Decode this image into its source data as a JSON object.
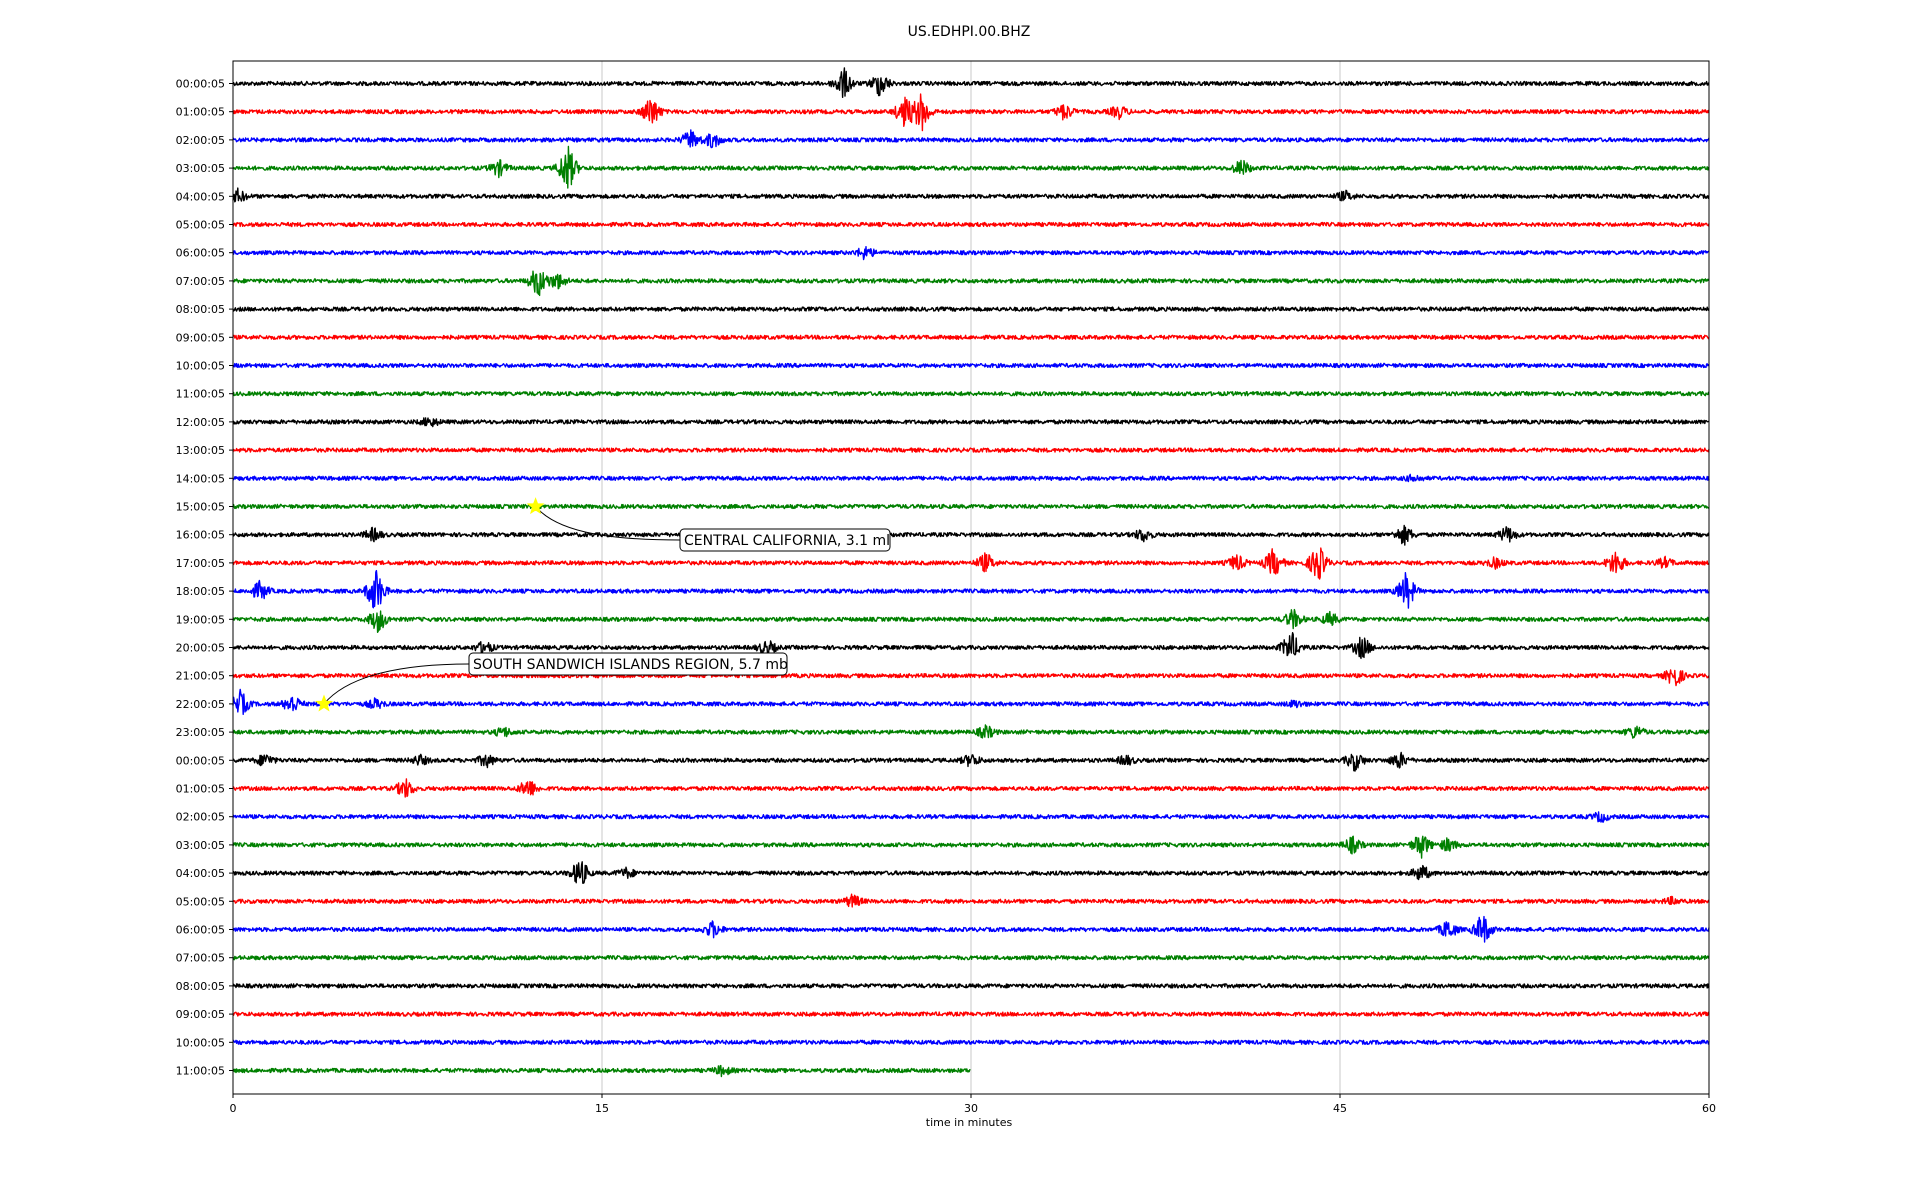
{
  "chart_data": {
    "type": "line",
    "title": "US.EDHPI.00.BHZ",
    "xlabel": "time in minutes",
    "ylabel": "",
    "xlim": [
      0,
      60
    ],
    "x_ticks": [
      "0",
      "15",
      "30",
      "45",
      "60"
    ],
    "x_tick_values": [
      0,
      15,
      30,
      45,
      60
    ],
    "grid": "vertical",
    "row_labels": [
      "00:00:05",
      "01:00:05",
      "02:00:05",
      "03:00:05",
      "04:00:05",
      "05:00:05",
      "06:00:05",
      "07:00:05",
      "08:00:05",
      "09:00:05",
      "10:00:05",
      "11:00:05",
      "12:00:05",
      "13:00:05",
      "14:00:05",
      "15:00:05",
      "16:00:05",
      "17:00:05",
      "18:00:05",
      "19:00:05",
      "20:00:05",
      "21:00:05",
      "22:00:05",
      "23:00:05",
      "00:00:05",
      "01:00:05",
      "02:00:05",
      "03:00:05",
      "04:00:05",
      "05:00:05",
      "06:00:05",
      "07:00:05",
      "08:00:05",
      "09:00:05",
      "10:00:05",
      "11:00:05"
    ],
    "trace_colors": [
      "#000000",
      "#ff0000",
      "#0000ff",
      "#008000"
    ],
    "last_trace_end_minute": 30,
    "events": [
      {
        "row": 0,
        "x": 24.8,
        "amp": 1.0
      },
      {
        "row": 0,
        "x": 26.3,
        "amp": 0.8
      },
      {
        "row": 1,
        "x": 17.0,
        "amp": 1.0
      },
      {
        "row": 1,
        "x": 27.3,
        "amp": 1.0
      },
      {
        "row": 1,
        "x": 28.0,
        "amp": 1.2
      },
      {
        "row": 1,
        "x": 33.8,
        "amp": 0.5
      },
      {
        "row": 1,
        "x": 36.0,
        "amp": 0.4
      },
      {
        "row": 2,
        "x": 18.6,
        "amp": 0.6
      },
      {
        "row": 2,
        "x": 19.5,
        "amp": 0.5
      },
      {
        "row": 3,
        "x": 10.8,
        "amp": 0.5
      },
      {
        "row": 3,
        "x": 13.6,
        "amp": 1.5
      },
      {
        "row": 3,
        "x": 41.0,
        "amp": 0.5
      },
      {
        "row": 4,
        "x": 0.2,
        "amp": 0.4
      },
      {
        "row": 4,
        "x": 45.2,
        "amp": 0.3
      },
      {
        "row": 6,
        "x": 25.7,
        "amp": 0.4
      },
      {
        "row": 7,
        "x": 12.4,
        "amp": 1.0
      },
      {
        "row": 7,
        "x": 13.2,
        "amp": 0.5
      },
      {
        "row": 12,
        "x": 8.0,
        "amp": 0.3
      },
      {
        "row": 14,
        "x": 48.0,
        "amp": 0.2
      },
      {
        "row": 16,
        "x": 5.7,
        "amp": 0.4
      },
      {
        "row": 16,
        "x": 37.0,
        "amp": 0.4
      },
      {
        "row": 16,
        "x": 47.6,
        "amp": 0.6
      },
      {
        "row": 16,
        "x": 51.8,
        "amp": 0.5
      },
      {
        "row": 17,
        "x": 30.6,
        "amp": 0.6
      },
      {
        "row": 17,
        "x": 40.8,
        "amp": 0.5
      },
      {
        "row": 17,
        "x": 42.3,
        "amp": 0.9
      },
      {
        "row": 17,
        "x": 44.1,
        "amp": 1.2
      },
      {
        "row": 17,
        "x": 51.3,
        "amp": 0.3
      },
      {
        "row": 17,
        "x": 56.2,
        "amp": 0.8
      },
      {
        "row": 17,
        "x": 58.2,
        "amp": 0.3
      },
      {
        "row": 18,
        "x": 1.1,
        "amp": 0.6
      },
      {
        "row": 18,
        "x": 5.8,
        "amp": 1.5
      },
      {
        "row": 18,
        "x": 47.7,
        "amp": 1.2
      },
      {
        "row": 19,
        "x": 5.9,
        "amp": 0.8
      },
      {
        "row": 19,
        "x": 43.1,
        "amp": 0.6
      },
      {
        "row": 19,
        "x": 44.6,
        "amp": 0.4
      },
      {
        "row": 20,
        "x": 10.2,
        "amp": 0.4
      },
      {
        "row": 20,
        "x": 21.7,
        "amp": 0.5
      },
      {
        "row": 20,
        "x": 43.0,
        "amp": 1.0
      },
      {
        "row": 20,
        "x": 45.9,
        "amp": 0.7
      },
      {
        "row": 21,
        "x": 58.6,
        "amp": 0.7
      },
      {
        "row": 22,
        "x": 0.3,
        "amp": 0.8
      },
      {
        "row": 22,
        "x": 2.4,
        "amp": 0.6
      },
      {
        "row": 22,
        "x": 5.8,
        "amp": 0.3
      },
      {
        "row": 22,
        "x": 43.2,
        "amp": 0.2
      },
      {
        "row": 23,
        "x": 11.0,
        "amp": 0.3
      },
      {
        "row": 23,
        "x": 30.6,
        "amp": 0.4
      },
      {
        "row": 23,
        "x": 57.0,
        "amp": 0.4
      },
      {
        "row": 24,
        "x": 1.3,
        "amp": 0.4
      },
      {
        "row": 24,
        "x": 7.6,
        "amp": 0.3
      },
      {
        "row": 24,
        "x": 10.3,
        "amp": 0.4
      },
      {
        "row": 24,
        "x": 30.0,
        "amp": 0.4
      },
      {
        "row": 24,
        "x": 36.3,
        "amp": 0.3
      },
      {
        "row": 24,
        "x": 45.6,
        "amp": 0.6
      },
      {
        "row": 24,
        "x": 47.4,
        "amp": 0.5
      },
      {
        "row": 25,
        "x": 7.0,
        "amp": 0.6
      },
      {
        "row": 25,
        "x": 12.0,
        "amp": 0.6
      },
      {
        "row": 26,
        "x": 55.6,
        "amp": 0.3
      },
      {
        "row": 27,
        "x": 45.5,
        "amp": 0.5
      },
      {
        "row": 27,
        "x": 48.3,
        "amp": 0.8
      },
      {
        "row": 27,
        "x": 49.4,
        "amp": 0.4
      },
      {
        "row": 28,
        "x": 14.1,
        "amp": 0.9
      },
      {
        "row": 28,
        "x": 16.0,
        "amp": 0.3
      },
      {
        "row": 28,
        "x": 48.3,
        "amp": 0.5
      },
      {
        "row": 29,
        "x": 25.2,
        "amp": 0.4
      },
      {
        "row": 29,
        "x": 58.5,
        "amp": 0.2
      },
      {
        "row": 30,
        "x": 19.5,
        "amp": 0.5
      },
      {
        "row": 30,
        "x": 49.4,
        "amp": 0.6
      },
      {
        "row": 30,
        "x": 50.8,
        "amp": 1.0
      },
      {
        "row": 35,
        "x": 19.9,
        "amp": 0.3
      }
    ],
    "annotations": [
      {
        "text": "CENTRAL CALIFORNIA, 3.1 ml",
        "row": 15,
        "x": 12.3
      },
      {
        "text": "SOUTH SANDWICH ISLANDS REGION, 5.7 mb",
        "row": 22,
        "x": 3.7
      }
    ]
  }
}
